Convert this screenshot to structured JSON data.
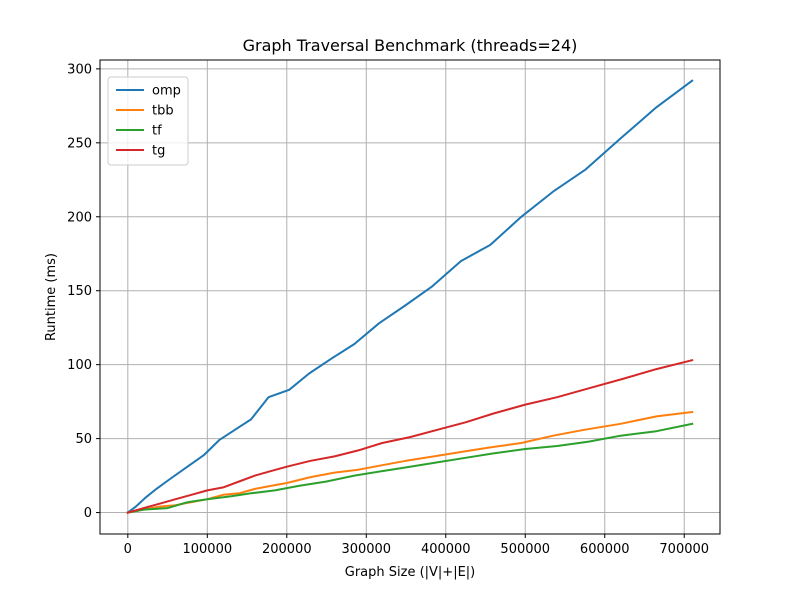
{
  "chart_data": {
    "type": "line",
    "title": "Graph Traversal Benchmark (threads=24)",
    "xlabel": "Graph Size (|V|+|E|)",
    "ylabel": "Runtime (ms)",
    "xlim": [
      -35000,
      745000
    ],
    "ylim": [
      -14.5,
      306
    ],
    "xticks": [
      0,
      100000,
      200000,
      300000,
      400000,
      500000,
      600000,
      700000
    ],
    "xtick_labels": [
      "0",
      "100000",
      "200000",
      "300000",
      "400000",
      "500000",
      "600000",
      "700000"
    ],
    "yticks": [
      0,
      50,
      100,
      150,
      200,
      250,
      300
    ],
    "ytick_labels": [
      "0",
      "50",
      "100",
      "150",
      "200",
      "250",
      "300"
    ],
    "grid": true,
    "legend_position": "top-left",
    "series": [
      {
        "name": "omp",
        "color": "#1f77b4",
        "x": [
          0,
          10000,
          22000,
          36000,
          54000,
          75000,
          96000,
          115000,
          135000,
          155000,
          177000,
          203000,
          228000,
          256000,
          285000,
          316000,
          349000,
          383000,
          419000,
          456000,
          495000,
          535000,
          576000,
          620000,
          665000,
          710000
        ],
        "y": [
          0,
          4,
          10,
          16,
          23,
          31,
          39,
          49,
          56,
          63,
          78,
          83,
          94,
          104,
          114,
          128,
          140,
          153,
          170,
          181,
          200,
          217,
          232,
          253,
          274,
          292
        ]
      },
      {
        "name": "tbb",
        "color": "#ff7f0e",
        "x": [
          0,
          20000,
          40000,
          60000,
          80000,
          100000,
          120000,
          140000,
          160000,
          180000,
          200000,
          230000,
          260000,
          290000,
          320000,
          350000,
          385000,
          420000,
          455000,
          495000,
          535000,
          575000,
          620000,
          665000,
          710000
        ],
        "y": [
          0,
          2,
          4,
          5,
          7,
          9,
          12,
          13,
          16,
          18,
          20,
          24,
          27,
          29,
          32,
          35,
          38,
          41,
          44,
          47,
          52,
          56,
          60,
          65,
          68
        ]
      },
      {
        "name": "tf",
        "color": "#2ca02c",
        "x": [
          0,
          20000,
          50000,
          75000,
          100000,
          130000,
          155000,
          185000,
          215000,
          250000,
          285000,
          320000,
          355000,
          390000,
          425000,
          460000,
          500000,
          540000,
          580000,
          620000,
          665000,
          710000
        ],
        "y": [
          0,
          2,
          3,
          7,
          9,
          11,
          13,
          15,
          18,
          21,
          25,
          28,
          31,
          34,
          37,
          40,
          43,
          45,
          48,
          52,
          55,
          60
        ]
      },
      {
        "name": "tg",
        "color": "#d62728",
        "x": [
          0,
          20000,
          40000,
          60000,
          80000,
          100000,
          120000,
          140000,
          160000,
          180000,
          200000,
          230000,
          260000,
          290000,
          320000,
          355000,
          390000,
          425000,
          460000,
          500000,
          540000,
          580000,
          620000,
          665000,
          710000
        ],
        "y": [
          0,
          3,
          6,
          9,
          12,
          15,
          17,
          21,
          25,
          28,
          31,
          35,
          38,
          42,
          47,
          51,
          56,
          61,
          67,
          73,
          78,
          84,
          90,
          97,
          103
        ]
      }
    ]
  }
}
